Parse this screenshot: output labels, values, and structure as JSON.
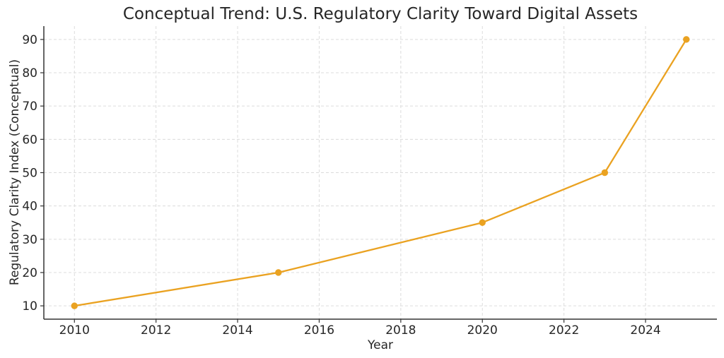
{
  "chart_data": {
    "type": "line",
    "title": "Conceptual Trend: U.S. Regulatory Clarity Toward Digital Assets",
    "xlabel": "Year",
    "ylabel": "Regulatory Clarity Index (Conceptual)",
    "series": [
      {
        "name": "Regulatory Clarity Index",
        "x": [
          2010,
          2015,
          2020,
          2023,
          2025
        ],
        "y": [
          10,
          20,
          35,
          50,
          90
        ],
        "color": "#EAA221",
        "marker": "circle"
      }
    ],
    "xticks": [
      2010,
      2012,
      2014,
      2016,
      2018,
      2020,
      2022,
      2024
    ],
    "yticks": [
      10,
      20,
      30,
      40,
      50,
      60,
      70,
      80,
      90
    ],
    "xlim": [
      2009.25,
      2025.75
    ],
    "ylim": [
      6,
      94
    ],
    "grid": true,
    "grid_color": "#DCDCDC",
    "grid_style": "dashed",
    "axis_color": "#333333",
    "text_color": "#262626",
    "background_color": "#FFFFFF",
    "legend_visible": false
  }
}
